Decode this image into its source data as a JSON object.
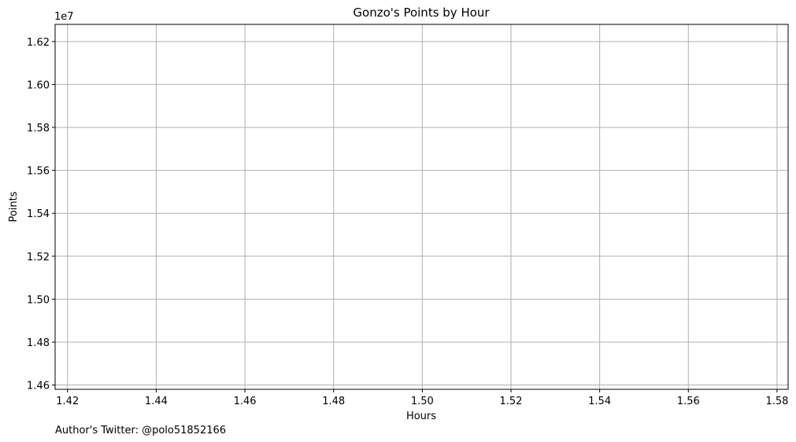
{
  "chart_data": {
    "type": "line",
    "title": "Gonzo's Points by Hour",
    "xlabel": "Hours",
    "ylabel": "Points",
    "y_offset_label": "1e7",
    "xlim": [
      1.4172,
      1.5825
    ],
    "ylim": [
      14580000,
      16280000
    ],
    "x_ticks": [
      1.42,
      1.44,
      1.46,
      1.48,
      1.5,
      1.52,
      1.54,
      1.56,
      1.58
    ],
    "x_tick_labels": [
      "1.42",
      "1.44",
      "1.46",
      "1.48",
      "1.50",
      "1.52",
      "1.54",
      "1.56",
      "1.58"
    ],
    "y_ticks": [
      14600000,
      14800000,
      15000000,
      15200000,
      15400000,
      15600000,
      15800000,
      16000000,
      16200000
    ],
    "y_tick_labels": [
      "1.46",
      "1.48",
      "1.50",
      "1.52",
      "1.54",
      "1.56",
      "1.58",
      "1.60",
      "1.62"
    ],
    "grid": true,
    "series": []
  },
  "footer": {
    "author_note": "Author's Twitter: @polo51852166"
  },
  "colors": {
    "grid": "#b0b0b0",
    "axes": "#000000",
    "background": "#ffffff"
  }
}
